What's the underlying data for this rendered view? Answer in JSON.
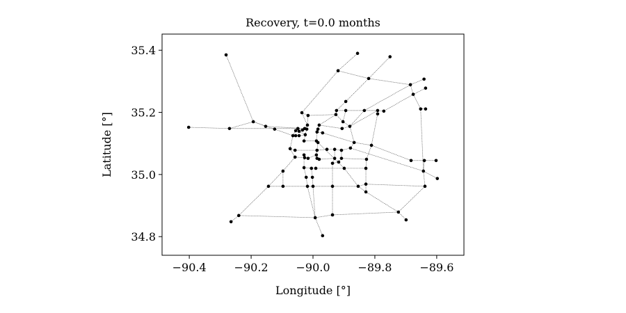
{
  "chart_data": {
    "type": "scatter",
    "subtype": "network",
    "title": "Recovery, t=0.0 months",
    "xlabel": "Longitude [°]",
    "ylabel": "Latitude [°]",
    "xlim": [
      -90.488,
      -89.512
    ],
    "ylim": [
      34.74,
      35.452
    ],
    "xticks": [
      -90.4,
      -90.2,
      -90.0,
      -89.8,
      -89.6
    ],
    "xtick_labels": [
      "−90.4",
      "−90.2",
      "−90.0",
      "−89.8",
      "−89.6"
    ],
    "yticks": [
      34.8,
      35.0,
      35.2,
      35.4
    ],
    "ytick_labels": [
      "34.8",
      "35.0",
      "35.2",
      "35.4"
    ],
    "grid": false,
    "colors": {
      "node": "#000000",
      "edge": "#555555"
    },
    "nodes": [
      {
        "id": 1,
        "lon": -90.281,
        "lat": 35.385
      },
      {
        "id": 2,
        "lon": -89.856,
        "lat": 35.39
      },
      {
        "id": 3,
        "lon": -89.751,
        "lat": 35.379
      },
      {
        "id": 4,
        "lon": -89.919,
        "lat": 35.334
      },
      {
        "id": 5,
        "lon": -89.82,
        "lat": 35.309
      },
      {
        "id": 6,
        "lon": -89.641,
        "lat": 35.307
      },
      {
        "id": 7,
        "lon": -89.685,
        "lat": 35.289
      },
      {
        "id": 8,
        "lon": -89.636,
        "lat": 35.278
      },
      {
        "id": 9,
        "lon": -89.676,
        "lat": 35.258
      },
      {
        "id": 10,
        "lon": -89.894,
        "lat": 35.235
      },
      {
        "id": 11,
        "lon": -89.924,
        "lat": 35.206
      },
      {
        "id": 12,
        "lon": -89.894,
        "lat": 35.206
      },
      {
        "id": 13,
        "lon": -89.834,
        "lat": 35.206
      },
      {
        "id": 14,
        "lon": -89.791,
        "lat": 35.206
      },
      {
        "id": 15,
        "lon": -89.791,
        "lat": 35.195
      },
      {
        "id": 16,
        "lon": -89.771,
        "lat": 35.204
      },
      {
        "id": 17,
        "lon": -89.652,
        "lat": 35.211
      },
      {
        "id": 18,
        "lon": -89.636,
        "lat": 35.211
      },
      {
        "id": 19,
        "lon": -90.036,
        "lat": 35.199
      },
      {
        "id": 20,
        "lon": -90.016,
        "lat": 35.19
      },
      {
        "id": 21,
        "lon": -89.926,
        "lat": 35.193
      },
      {
        "id": 22,
        "lon": -90.193,
        "lat": 35.17
      },
      {
        "id": 23,
        "lon": -90.402,
        "lat": 35.152
      },
      {
        "id": 24,
        "lon": -90.27,
        "lat": 35.148
      },
      {
        "id": 25,
        "lon": -90.153,
        "lat": 35.155
      },
      {
        "id": 26,
        "lon": -90.124,
        "lat": 35.146
      },
      {
        "id": 27,
        "lon": -89.903,
        "lat": 35.17
      },
      {
        "id": 28,
        "lon": -89.906,
        "lat": 35.148
      },
      {
        "id": 30,
        "lon": -89.881,
        "lat": 35.155
      },
      {
        "id": 31,
        "lon": -89.98,
        "lat": 35.159
      },
      {
        "id": 32,
        "lon": -89.984,
        "lat": 35.146
      },
      {
        "id": 33,
        "lon": -89.987,
        "lat": 35.137
      },
      {
        "id": 34,
        "lon": -90.018,
        "lat": 35.159
      },
      {
        "id": 35,
        "lon": -90.027,
        "lat": 35.148
      },
      {
        "id": 36,
        "lon": -90.034,
        "lat": 35.143
      },
      {
        "id": 37,
        "lon": -90.049,
        "lat": 35.148
      },
      {
        "id": 38,
        "lon": -90.056,
        "lat": 35.141
      },
      {
        "id": 39,
        "lon": -90.045,
        "lat": 35.139
      },
      {
        "id": 41,
        "lon": -90.025,
        "lat": 35.128
      },
      {
        "id": 42,
        "lon": -90.02,
        "lat": 35.146
      },
      {
        "id": 43,
        "lon": -89.969,
        "lat": 35.134
      },
      {
        "id": 44,
        "lon": -90.065,
        "lat": 35.125
      },
      {
        "id": 45,
        "lon": -90.056,
        "lat": 35.125
      },
      {
        "id": 46,
        "lon": -90.045,
        "lat": 35.125
      },
      {
        "id": 47,
        "lon": -90.029,
        "lat": 35.108
      },
      {
        "id": 48,
        "lon": -89.989,
        "lat": 35.108
      },
      {
        "id": 49,
        "lon": -89.984,
        "lat": 35.103
      },
      {
        "id": 50,
        "lon": -89.867,
        "lat": 35.103
      },
      {
        "id": 51,
        "lon": -90.074,
        "lat": 35.083
      },
      {
        "id": 52,
        "lon": -90.058,
        "lat": 35.078
      },
      {
        "id": 53,
        "lon": -89.987,
        "lat": 35.078
      },
      {
        "id": 54,
        "lon": -89.955,
        "lat": 35.081
      },
      {
        "id": 55,
        "lon": -89.93,
        "lat": 35.081
      },
      {
        "id": 56,
        "lon": -89.908,
        "lat": 35.078
      },
      {
        "id": 57,
        "lon": -89.811,
        "lat": 35.094
      },
      {
        "id": 58,
        "lon": -90.058,
        "lat": 35.056
      },
      {
        "id": 59,
        "lon": -90.029,
        "lat": 35.063
      },
      {
        "id": 60,
        "lon": -90.027,
        "lat": 35.054
      },
      {
        "id": 61,
        "lon": -90.016,
        "lat": 35.052
      },
      {
        "id": 63,
        "lon": -89.989,
        "lat": 35.063
      },
      {
        "id": 64,
        "lon": -89.987,
        "lat": 35.052
      },
      {
        "id": 65,
        "lon": -89.98,
        "lat": 35.049
      },
      {
        "id": 66,
        "lon": -89.93,
        "lat": 35.052
      },
      {
        "id": 67,
        "lon": -89.937,
        "lat": 35.036
      },
      {
        "id": 68,
        "lon": -89.917,
        "lat": 35.04
      },
      {
        "id": 69,
        "lon": -89.908,
        "lat": 35.052
      },
      {
        "id": 70,
        "lon": -89.827,
        "lat": 35.049
      },
      {
        "id": 72,
        "lon": -90.029,
        "lat": 35.022
      },
      {
        "id": 73,
        "lon": -90.005,
        "lat": 35.02
      },
      {
        "id": 74,
        "lon": -89.991,
        "lat": 35.02
      },
      {
        "id": 75,
        "lon": -89.899,
        "lat": 35.02
      },
      {
        "id": 76,
        "lon": -89.829,
        "lat": 35.02
      },
      {
        "id": 77,
        "lon": -89.683,
        "lat": 35.045
      },
      {
        "id": 78,
        "lon": -89.64,
        "lat": 35.045
      },
      {
        "id": 79,
        "lon": -89.602,
        "lat": 35.045
      },
      {
        "id": 80,
        "lon": -89.643,
        "lat": 35.011
      },
      {
        "id": 81,
        "lon": -89.598,
        "lat": 34.987
      },
      {
        "id": 82,
        "lon": -90.097,
        "lat": 35.011
      },
      {
        "id": 83,
        "lon": -90.022,
        "lat": 34.991
      },
      {
        "id": 84,
        "lon": -90.002,
        "lat": 34.991
      },
      {
        "id": 85,
        "lon": -90.144,
        "lat": 34.962
      },
      {
        "id": 86,
        "lon": -90.097,
        "lat": 34.962
      },
      {
        "id": 87,
        "lon": -90.018,
        "lat": 34.962
      },
      {
        "id": 88,
        "lon": -90.0,
        "lat": 34.962
      },
      {
        "id": 89,
        "lon": -89.937,
        "lat": 34.962
      },
      {
        "id": 90,
        "lon": -89.854,
        "lat": 34.962
      },
      {
        "id": 91,
        "lon": -89.829,
        "lat": 34.969
      },
      {
        "id": 92,
        "lon": -89.829,
        "lat": 34.944
      },
      {
        "id": 93,
        "lon": -89.638,
        "lat": 34.962
      },
      {
        "id": 94,
        "lon": -90.24,
        "lat": 34.868
      },
      {
        "id": 95,
        "lon": -90.265,
        "lat": 34.848
      },
      {
        "id": 96,
        "lon": -89.993,
        "lat": 34.861
      },
      {
        "id": 98,
        "lon": -89.937,
        "lat": 34.87
      },
      {
        "id": 99,
        "lon": -89.724,
        "lat": 34.879
      },
      {
        "id": 100,
        "lon": -89.699,
        "lat": 34.854
      },
      {
        "id": 101,
        "lon": -89.969,
        "lat": 34.803
      },
      {
        "id": 102,
        "lon": -89.879,
        "lat": 35.085
      }
    ],
    "edges": [
      [
        1,
        22
      ],
      [
        22,
        24
      ],
      [
        23,
        24
      ],
      [
        24,
        37
      ],
      [
        22,
        25
      ],
      [
        25,
        35
      ],
      [
        22,
        26
      ],
      [
        26,
        44
      ],
      [
        19,
        4
      ],
      [
        4,
        2
      ],
      [
        4,
        5
      ],
      [
        5,
        3
      ],
      [
        5,
        7
      ],
      [
        7,
        6
      ],
      [
        7,
        9
      ],
      [
        9,
        8
      ],
      [
        7,
        13
      ],
      [
        9,
        16
      ],
      [
        9,
        17
      ],
      [
        17,
        18
      ],
      [
        16,
        14
      ],
      [
        14,
        13
      ],
      [
        13,
        12
      ],
      [
        12,
        11
      ],
      [
        11,
        10
      ],
      [
        10,
        5
      ],
      [
        12,
        27
      ],
      [
        11,
        21
      ],
      [
        21,
        31
      ],
      [
        21,
        27
      ],
      [
        20,
        21
      ],
      [
        19,
        20
      ],
      [
        19,
        34
      ],
      [
        20,
        34
      ],
      [
        28,
        31
      ],
      [
        28,
        30
      ],
      [
        27,
        30
      ],
      [
        30,
        13
      ],
      [
        30,
        14
      ],
      [
        14,
        15
      ],
      [
        30,
        50
      ],
      [
        50,
        57
      ],
      [
        57,
        15
      ],
      [
        57,
        70
      ],
      [
        17,
        80
      ],
      [
        43,
        50
      ],
      [
        31,
        32
      ],
      [
        32,
        33
      ],
      [
        33,
        43
      ],
      [
        34,
        35
      ],
      [
        35,
        36
      ],
      [
        36,
        37
      ],
      [
        37,
        38
      ],
      [
        38,
        39
      ],
      [
        39,
        41
      ],
      [
        41,
        42
      ],
      [
        42,
        35
      ],
      [
        38,
        44
      ],
      [
        44,
        45
      ],
      [
        45,
        46
      ],
      [
        46,
        41
      ],
      [
        44,
        51
      ],
      [
        41,
        47
      ],
      [
        47,
        48
      ],
      [
        33,
        48
      ],
      [
        48,
        49
      ],
      [
        49,
        53
      ],
      [
        51,
        58
      ],
      [
        52,
        53
      ],
      [
        51,
        52
      ],
      [
        53,
        54
      ],
      [
        54,
        55
      ],
      [
        55,
        56
      ],
      [
        56,
        102
      ],
      [
        102,
        50
      ],
      [
        102,
        80
      ],
      [
        57,
        77
      ],
      [
        77,
        78
      ],
      [
        78,
        79
      ],
      [
        78,
        80
      ],
      [
        80,
        81
      ],
      [
        56,
        69
      ],
      [
        55,
        66
      ],
      [
        66,
        67
      ],
      [
        67,
        68
      ],
      [
        68,
        69
      ],
      [
        69,
        70
      ],
      [
        70,
        76
      ],
      [
        76,
        75
      ],
      [
        75,
        74
      ],
      [
        74,
        73
      ],
      [
        73,
        72
      ],
      [
        72,
        59
      ],
      [
        59,
        60
      ],
      [
        60,
        61
      ],
      [
        61,
        63
      ],
      [
        63,
        64
      ],
      [
        64,
        65
      ],
      [
        65,
        66
      ],
      [
        53,
        63
      ],
      [
        58,
        60
      ],
      [
        58,
        82
      ],
      [
        82,
        85
      ],
      [
        85,
        94
      ],
      [
        94,
        95
      ],
      [
        82,
        86
      ],
      [
        85,
        86
      ],
      [
        86,
        87
      ],
      [
        87,
        88
      ],
      [
        88,
        89
      ],
      [
        89,
        90
      ],
      [
        90,
        91
      ],
      [
        91,
        93
      ],
      [
        90,
        92
      ],
      [
        92,
        99
      ],
      [
        99,
        100
      ],
      [
        99,
        93
      ],
      [
        93,
        80
      ],
      [
        94,
        96
      ],
      [
        96,
        98
      ],
      [
        98,
        99
      ],
      [
        96,
        101
      ],
      [
        87,
        96
      ],
      [
        88,
        96
      ],
      [
        72,
        83
      ],
      [
        83,
        87
      ],
      [
        73,
        84
      ],
      [
        84,
        88
      ],
      [
        89,
        98
      ],
      [
        89,
        67
      ],
      [
        75,
        90
      ],
      [
        49,
        75
      ],
      [
        76,
        91
      ],
      [
        91,
        92
      ]
    ]
  }
}
